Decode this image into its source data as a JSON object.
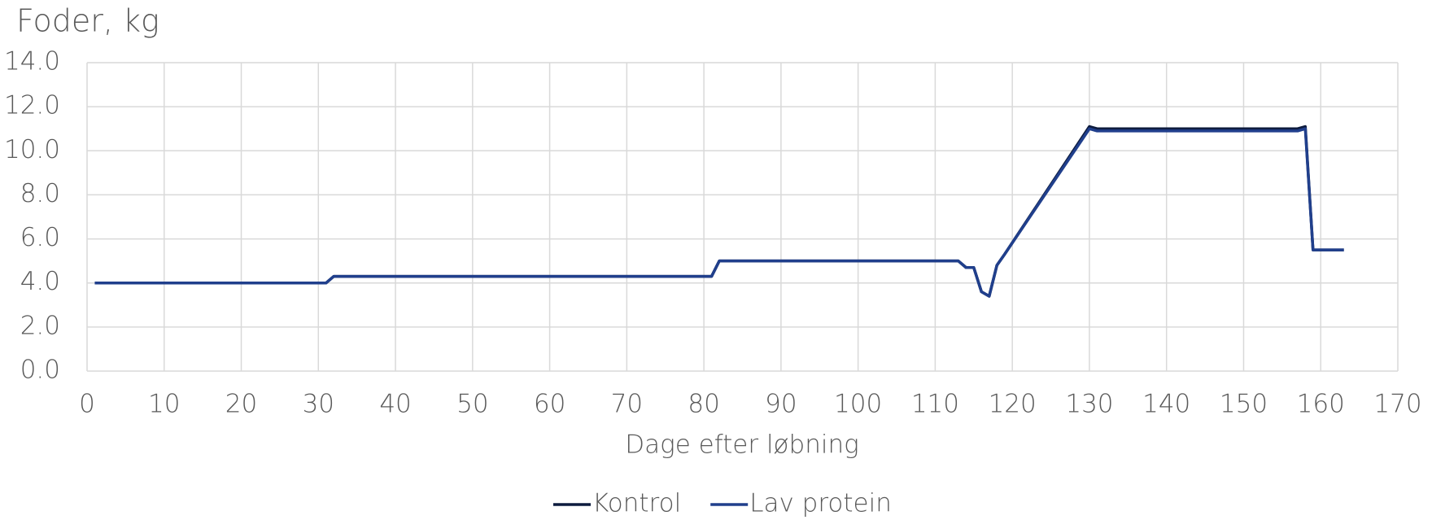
{
  "chart_data": {
    "type": "line",
    "title": "Foder, kg",
    "x_label": "Dage efter løbning",
    "x": [
      1,
      30,
      31,
      32,
      33,
      80,
      81,
      82,
      83,
      112,
      113,
      114,
      115,
      116,
      117,
      118,
      119,
      130,
      131,
      157,
      158,
      159,
      160,
      163
    ],
    "series": [
      {
        "name": "Kontrol",
        "color": "#0d1b3e",
        "values": [
          4.0,
          4.0,
          4.0,
          4.3,
          4.3,
          4.3,
          4.3,
          5.0,
          5.0,
          5.0,
          5.0,
          4.7,
          4.7,
          3.6,
          3.4,
          4.8,
          5.3,
          11.1,
          11.0,
          11.0,
          11.1,
          5.5,
          5.5,
          5.5
        ]
      },
      {
        "name": "Lav protein",
        "color": "#203f8c",
        "values": [
          4.0,
          4.0,
          4.0,
          4.3,
          4.3,
          4.3,
          4.3,
          5.0,
          5.0,
          5.0,
          5.0,
          4.7,
          4.7,
          3.6,
          3.4,
          4.8,
          5.3,
          11.0,
          10.9,
          10.9,
          11.0,
          5.5,
          5.5,
          5.5
        ]
      }
    ],
    "xlim": [
      0,
      170
    ],
    "xticks": [
      0,
      10,
      20,
      30,
      40,
      50,
      60,
      70,
      80,
      90,
      100,
      110,
      120,
      130,
      140,
      150,
      160,
      170
    ],
    "ylim": [
      0,
      14
    ],
    "yticks": [
      {
        "value": 0,
        "label": "0.0"
      },
      {
        "value": 2,
        "label": "2.0"
      },
      {
        "value": 4,
        "label": "4.0"
      },
      {
        "value": 6,
        "label": "6.0"
      },
      {
        "value": 8,
        "label": "8.0"
      },
      {
        "value": 10,
        "label": "10.0"
      },
      {
        "value": 12,
        "label": "12.0"
      },
      {
        "value": 14,
        "label": "14.0"
      }
    ],
    "grid": true,
    "legend": "bottom"
  }
}
